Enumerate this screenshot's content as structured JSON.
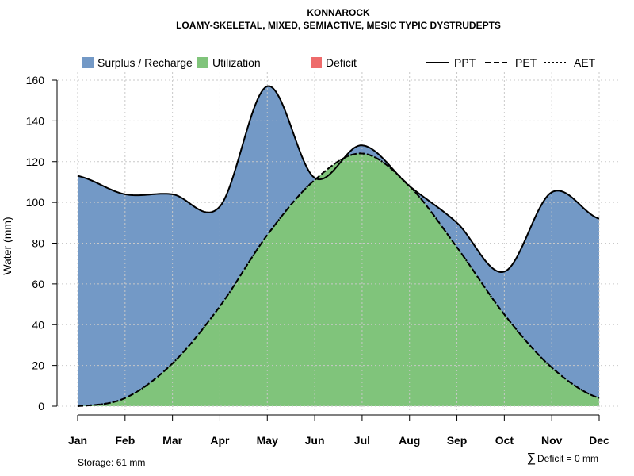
{
  "chart_data": {
    "type": "area",
    "title": "KONNAROCK",
    "subtitle": "LOAMY-SKELETAL, MIXED, SEMIACTIVE, MESIC TYPIC DYSTRUDEPTS",
    "xlabel": "",
    "ylabel": "Water (mm)",
    "categories": [
      "Jan",
      "Feb",
      "Mar",
      "Apr",
      "May",
      "Jun",
      "Jul",
      "Aug",
      "Sep",
      "Oct",
      "Nov",
      "Dec"
    ],
    "ylim": [
      0,
      160
    ],
    "yticks": [
      0,
      20,
      40,
      60,
      80,
      100,
      120,
      140,
      160
    ],
    "grid": true,
    "series": [
      {
        "name": "PPT",
        "line": "solid",
        "values": [
          113,
          104,
          104,
          98,
          157,
          112,
          128,
          108,
          90,
          66,
          105,
          92
        ]
      },
      {
        "name": "PET",
        "line": "dashed",
        "values": [
          0,
          4,
          21,
          49,
          84,
          111,
          124,
          108,
          78,
          45,
          19,
          4
        ]
      },
      {
        "name": "AET",
        "line": "dotted",
        "values": [
          0,
          4,
          21,
          49,
          84,
          111,
          124,
          108,
          78,
          45,
          19,
          4
        ]
      }
    ],
    "areas": [
      {
        "name": "Surplus / Recharge",
        "color": "#7399c6"
      },
      {
        "name": "Utilization",
        "color": "#80c47b"
      },
      {
        "name": "Deficit",
        "color": "#ee6b6b"
      }
    ],
    "legend_placement": "top",
    "annotations": {
      "storage": "Storage: 61 mm",
      "deficit_symbol": "∑",
      "deficit": "Deficit = 0 mm"
    }
  }
}
